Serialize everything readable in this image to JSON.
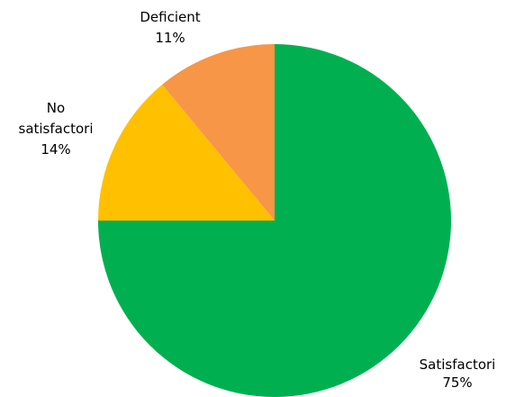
{
  "chart_data": {
    "type": "pie",
    "title": "",
    "series": [
      {
        "values": [
          75,
          14,
          11
        ],
        "categories": [
          "Satisfactori",
          "No satisfactori",
          "Deficient"
        ]
      }
    ],
    "slices": [
      {
        "label": "Satisfactori",
        "value": 75,
        "percent_label": "75%",
        "color": "#00B050"
      },
      {
        "label": "No satisfactori",
        "value": 14,
        "percent_label": "14%",
        "color": "#FFC000"
      },
      {
        "label": "Deficient",
        "value": 11,
        "percent_label": "11%",
        "color": "#F79646"
      }
    ],
    "legend": "none"
  }
}
